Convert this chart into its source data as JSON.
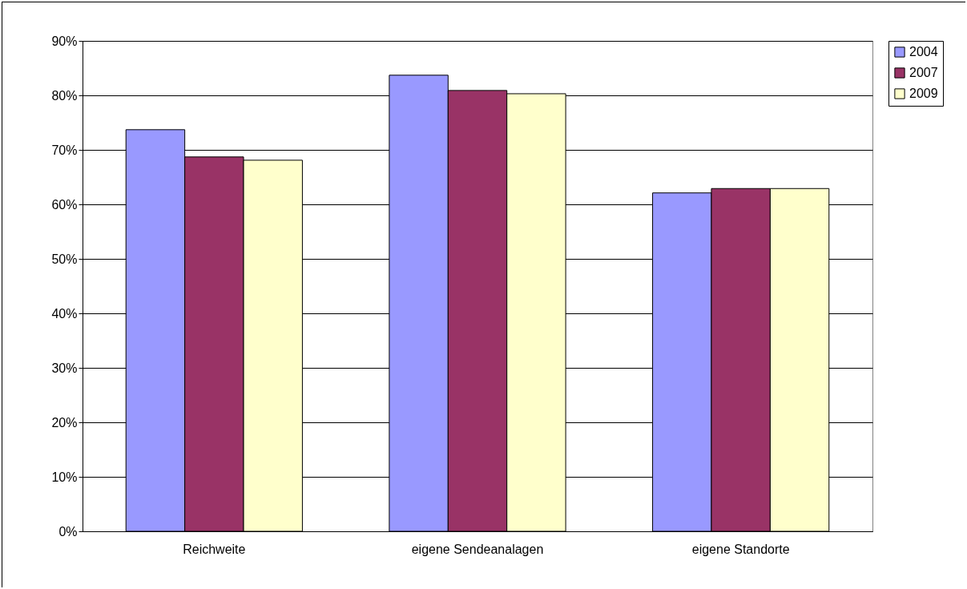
{
  "chart_data": {
    "type": "bar",
    "categories": [
      "Reichweite",
      "eigene Sendeanalagen",
      "eigene Standorte"
    ],
    "series": [
      {
        "name": "2004",
        "color": "#9999ff",
        "values": [
          73.7,
          83.7,
          62.1
        ]
      },
      {
        "name": "2007",
        "color": "#993366",
        "values": [
          68.7,
          80.9,
          62.9
        ]
      },
      {
        "name": "2009",
        "color": "#ffffcc",
        "values": [
          68.1,
          80.3,
          62.9
        ]
      }
    ],
    "ylim": [
      0,
      90
    ],
    "yticks": [
      {
        "value": 0,
        "label": "0%"
      },
      {
        "value": 10,
        "label": "10%"
      },
      {
        "value": 20,
        "label": "20%"
      },
      {
        "value": 30,
        "label": "30%"
      },
      {
        "value": 40,
        "label": "40%"
      },
      {
        "value": 50,
        "label": "50%"
      },
      {
        "value": 60,
        "label": "60%"
      },
      {
        "value": 70,
        "label": "70%"
      },
      {
        "value": 80,
        "label": "80%"
      },
      {
        "value": 90,
        "label": "90%"
      }
    ],
    "grid": "y",
    "legend": "right"
  }
}
